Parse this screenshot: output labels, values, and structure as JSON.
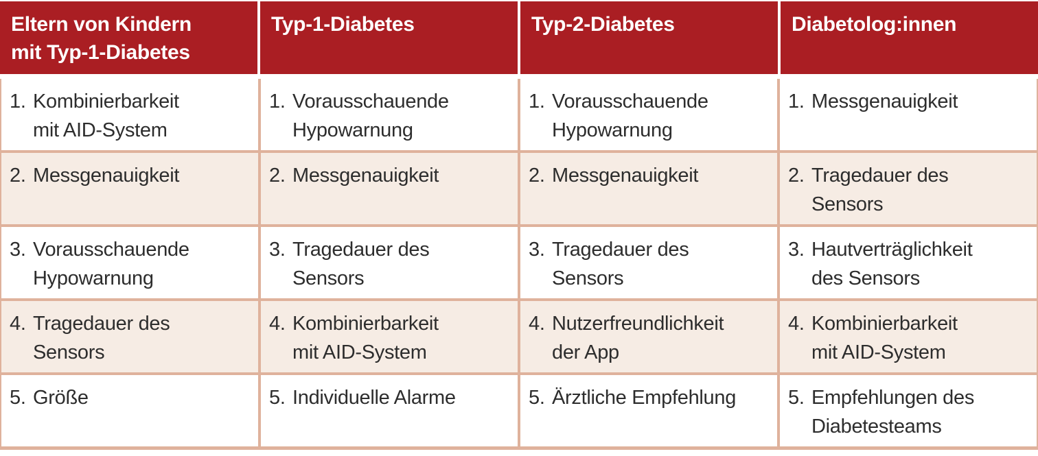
{
  "colors": {
    "header_bg": "#AA1E23",
    "header_text": "#FFFFFF",
    "row_bg_white": "#FFFFFF",
    "row_bg_peach": "#F6ECE4",
    "border_tan": "#DFB29C",
    "body_text": "#2D2D2D"
  },
  "table": {
    "headers": [
      "Eltern von Kindern\nmit Typ-1-Diabetes",
      "Typ-1-Diabetes",
      "Typ-2-Diabetes",
      "Diabetolog:innen"
    ],
    "rows": [
      {
        "cells": [
          {
            "num": "1.",
            "text": "Kombinierbarkeit\nmit AID-System"
          },
          {
            "num": "1.",
            "text": "Vorausschauende\nHypowarnung"
          },
          {
            "num": "1.",
            "text": "Vorausschauende\nHypowarnung"
          },
          {
            "num": "1.",
            "text": "Messgenauigkeit"
          }
        ]
      },
      {
        "cells": [
          {
            "num": "2.",
            "text": "Messgenauigkeit"
          },
          {
            "num": "2.",
            "text": "Messgenauigkeit"
          },
          {
            "num": "2.",
            "text": "Messgenauigkeit"
          },
          {
            "num": "2.",
            "text": "Tragedauer des\nSensors"
          }
        ]
      },
      {
        "cells": [
          {
            "num": "3.",
            "text": "Vorausschauende\nHypowarnung"
          },
          {
            "num": "3.",
            "text": "Tragedauer des\nSensors"
          },
          {
            "num": "3.",
            "text": "Tragedauer des\nSensors"
          },
          {
            "num": "3.",
            "text": "Hautverträglichkeit\ndes Sensors"
          }
        ]
      },
      {
        "cells": [
          {
            "num": "4.",
            "text": "Tragedauer des\nSensors"
          },
          {
            "num": "4.",
            "text": "Kombinierbarkeit\nmit AID-System"
          },
          {
            "num": "4.",
            "text": "Nutzerfreundlichkeit\nder App"
          },
          {
            "num": "4.",
            "text": "Kombinierbarkeit\nmit AID-System"
          }
        ]
      },
      {
        "cells": [
          {
            "num": "5.",
            "text": "Größe"
          },
          {
            "num": "5.",
            "text": "Individuelle Alarme"
          },
          {
            "num": "5.",
            "text": "Ärztliche Empfehlung"
          },
          {
            "num": "5.",
            "text": "Empfehlungen des\nDiabetesteams"
          }
        ]
      }
    ]
  },
  "chart_data": {
    "type": "table",
    "columns": [
      "Eltern von Kindern mit Typ-1-Diabetes",
      "Typ-1-Diabetes",
      "Typ-2-Diabetes",
      "Diabetolog:innen"
    ],
    "rank_labels": [
      "1.",
      "2.",
      "3.",
      "4.",
      "5."
    ],
    "rankings": {
      "Eltern von Kindern mit Typ-1-Diabetes": [
        "Kombinierbarkeit mit AID-System",
        "Messgenauigkeit",
        "Vorausschauende Hypowarnung",
        "Tragedauer des Sensors",
        "Größe"
      ],
      "Typ-1-Diabetes": [
        "Vorausschauende Hypowarnung",
        "Messgenauigkeit",
        "Tragedauer des Sensors",
        "Kombinierbarkeit mit AID-System",
        "Individuelle Alarme"
      ],
      "Typ-2-Diabetes": [
        "Vorausschauende Hypowarnung",
        "Messgenauigkeit",
        "Tragedauer des Sensors",
        "Nutzerfreundlichkeit der App",
        "Ärztliche Empfehlung"
      ],
      "Diabetolog:innen": [
        "Messgenauigkeit",
        "Tragedauer des Sensors",
        "Hautverträglichkeit des Sensors",
        "Kombinierbarkeit mit AID-System",
        "Empfehlungen des Diabetesteams"
      ]
    }
  }
}
